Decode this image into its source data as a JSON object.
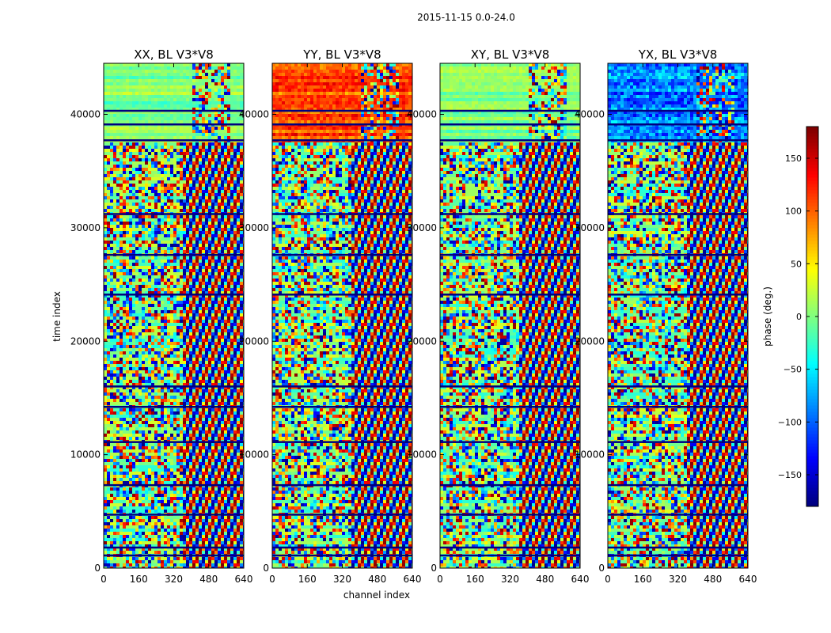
{
  "chart_data": {
    "type": "heatmap",
    "suptitle": "2015-11-15 0.0-24.0",
    "xlabel": "channel index",
    "ylabel": "time index",
    "x_range": [
      0,
      640
    ],
    "y_range": [
      0,
      44500
    ],
    "x_ticks": [
      0,
      160,
      320,
      480,
      640
    ],
    "y_ticks": [
      0,
      10000,
      20000,
      30000,
      40000
    ],
    "panels": [
      {
        "title": "XX, BL V3*V8",
        "dominant": "mixed"
      },
      {
        "title": "YY, BL V3*V8",
        "dominant": "orange-top"
      },
      {
        "title": "XY, BL V3*V8",
        "dominant": "mixed"
      },
      {
        "title": "YX, BL V3*V8",
        "dominant": "blue-top"
      }
    ],
    "colorbar": {
      "label": "phase (deg.)",
      "range": [
        -180,
        180
      ],
      "ticks": [
        -150,
        -100,
        -50,
        0,
        50,
        100,
        150
      ],
      "colormap": "jet"
    },
    "gap_rows_time_index": [
      1200,
      1900,
      4800,
      7400,
      11200,
      14300,
      16100,
      24200,
      27700,
      31300,
      37800,
      39200,
      40400
    ]
  }
}
